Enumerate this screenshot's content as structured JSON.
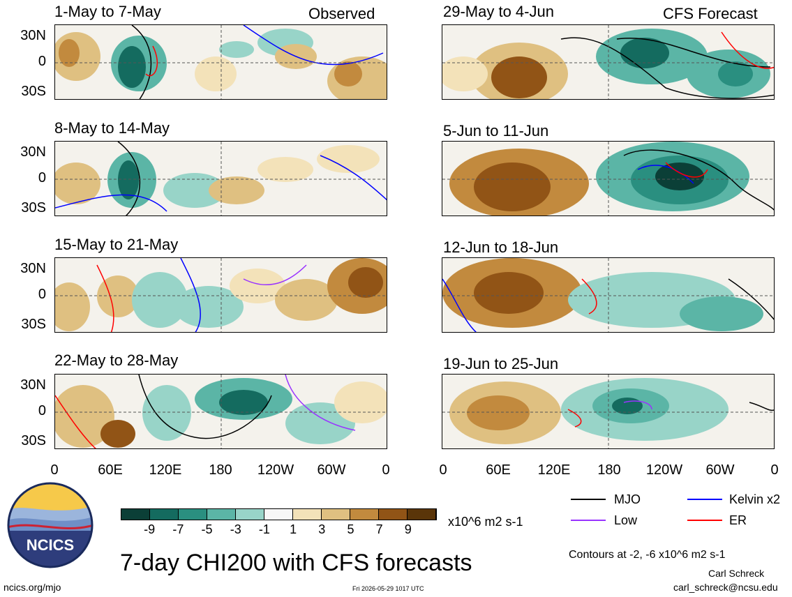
{
  "header": {
    "left_label": "Observed",
    "right_label": "CFS Forecast"
  },
  "panels": [
    {
      "title": "1-May to 7-May"
    },
    {
      "title": "29-May to 4-Jun"
    },
    {
      "title": "8-May to 14-May"
    },
    {
      "title": "5-Jun to 11-Jun"
    },
    {
      "title": "15-May to 21-May"
    },
    {
      "title": "12-Jun to 18-Jun"
    },
    {
      "title": "22-May to 28-May"
    },
    {
      "title": "19-Jun to 25-Jun"
    }
  ],
  "axes": {
    "lat_ticks": [
      "30N",
      "0",
      "30S"
    ],
    "lon_ticks": [
      "0",
      "60E",
      "120E",
      "180",
      "120W",
      "60W",
      "0"
    ]
  },
  "colorbar": {
    "ticks": [
      "-9",
      "-7",
      "-5",
      "-3",
      "-1",
      "1",
      "3",
      "5",
      "7",
      "9"
    ],
    "units": "x10^6 m2 s-1",
    "colors": [
      "#0b3f37",
      "#146b5f",
      "#2a8f80",
      "#5bb5a6",
      "#98d4c8",
      "#f7f7f7",
      "#f3e2b9",
      "#dfc081",
      "#c28a3e",
      "#915416",
      "#5a3509"
    ]
  },
  "legend": {
    "items": [
      {
        "label": "MJO",
        "color": "#000000"
      },
      {
        "label": "Kelvin x2",
        "color": "#0000ff"
      },
      {
        "label": "Low",
        "color": "#9933ff"
      },
      {
        "label": "ER",
        "color": "#ff0000"
      }
    ],
    "contour_note": "Contours at -2, -6 x10^6 m2 s-1"
  },
  "branding": {
    "logo_text": "NCICS",
    "title": "7-day CHI200 with CFS forecasts",
    "url": "ncics.org/mjo",
    "timestamp": "Fri 2026-05-29 1017 UTC",
    "author": "Carl Schreck",
    "email": "carl_schreck@ncsu.edu"
  }
}
